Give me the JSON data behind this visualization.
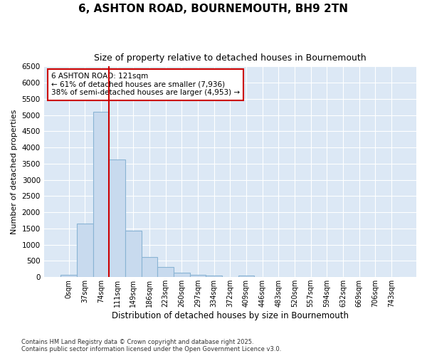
{
  "title": "6, ASHTON ROAD, BOURNEMOUTH, BH9 2TN",
  "subtitle": "Size of property relative to detached houses in Bournemouth",
  "xlabel": "Distribution of detached houses by size in Bournemouth",
  "ylabel": "Number of detached properties",
  "bar_color": "#c8daee",
  "bar_edge_color": "#8ab4d4",
  "background_color": "#dce8f5",
  "grid_color": "#ffffff",
  "categories": [
    "0sqm",
    "37sqm",
    "74sqm",
    "111sqm",
    "149sqm",
    "186sqm",
    "223sqm",
    "260sqm",
    "297sqm",
    "334sqm",
    "372sqm",
    "409sqm",
    "446sqm",
    "483sqm",
    "520sqm",
    "557sqm",
    "594sqm",
    "632sqm",
    "669sqm",
    "706sqm",
    "743sqm"
  ],
  "values": [
    75,
    1650,
    5100,
    3620,
    1430,
    620,
    310,
    140,
    70,
    40,
    0,
    40,
    0,
    0,
    0,
    0,
    0,
    0,
    0,
    0,
    0
  ],
  "ylim": [
    0,
    6500
  ],
  "yticks": [
    0,
    500,
    1000,
    1500,
    2000,
    2500,
    3000,
    3500,
    4000,
    4500,
    5000,
    5500,
    6000,
    6500
  ],
  "vline_position": 2.5,
  "vline_color": "#cc0000",
  "property_line_label": "6 ASHTON ROAD: 121sqm",
  "annotation_line1": "← 61% of detached houses are smaller (7,936)",
  "annotation_line2": "38% of semi-detached houses are larger (4,953) →",
  "annotation_box_color": "#ffffff",
  "annotation_box_edge_color": "#cc0000",
  "footnote1": "Contains HM Land Registry data © Crown copyright and database right 2025.",
  "footnote2": "Contains public sector information licensed under the Open Government Licence v3.0."
}
